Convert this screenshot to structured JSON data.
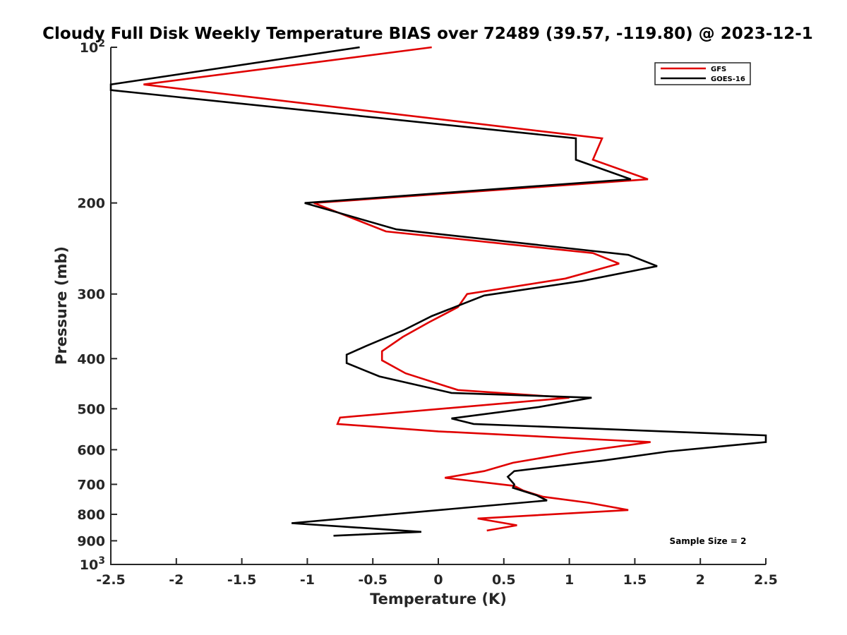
{
  "chart_data": {
    "type": "line",
    "title": "Cloudy Full Disk Weekly Temperature BIAS over 72489 (39.57, -119.80) @ 2023-12-1",
    "xlabel": "Temperature (K)",
    "ylabel": "Pressure (mb)",
    "xlim": [
      -2.5,
      2.5
    ],
    "ylim": [
      100,
      1000
    ],
    "y_scale": "log",
    "y_reversed": true,
    "grid": false,
    "legend_position": "top-right",
    "x_ticks": [
      -2.5,
      -2,
      -1.5,
      -1,
      -0.5,
      0,
      0.5,
      1,
      1.5,
      2,
      2.5
    ],
    "x_tick_labels": [
      "-2.5",
      "-2",
      "-1.5",
      "-1",
      "-0.5",
      "0",
      "0.5",
      "1",
      "1.5",
      "2",
      "2.5"
    ],
    "y_ticks": [
      100,
      200,
      300,
      400,
      500,
      600,
      700,
      800,
      900,
      1000
    ],
    "y_tick_labels": [
      {
        "base": "10",
        "exp": "2"
      },
      {
        "base": "200",
        "exp": ""
      },
      {
        "base": "300",
        "exp": ""
      },
      {
        "base": "400",
        "exp": ""
      },
      {
        "base": "500",
        "exp": ""
      },
      {
        "base": "600",
        "exp": ""
      },
      {
        "base": "700",
        "exp": ""
      },
      {
        "base": "800",
        "exp": ""
      },
      {
        "base": "900",
        "exp": ""
      },
      {
        "base": "10",
        "exp": "3"
      }
    ],
    "annotation": "Sample Size = 2",
    "series": [
      {
        "name": "GFS",
        "color": "#e00000",
        "points": [
          [
            -0.05,
            100
          ],
          [
            -2.25,
            118
          ],
          [
            1.25,
            150
          ],
          [
            1.18,
            165
          ],
          [
            1.6,
            180
          ],
          [
            -0.95,
            200
          ],
          [
            -0.4,
            227
          ],
          [
            1.18,
            250
          ],
          [
            1.38,
            262
          ],
          [
            0.97,
            280
          ],
          [
            0.22,
            300
          ],
          [
            0.15,
            318
          ],
          [
            -0.07,
            340
          ],
          [
            -0.27,
            363
          ],
          [
            -0.43,
            387
          ],
          [
            -0.43,
            403
          ],
          [
            -0.25,
            427
          ],
          [
            0.15,
            460
          ],
          [
            1.0,
            476
          ],
          [
            -0.75,
            520
          ],
          [
            -0.77,
            535
          ],
          [
            0.0,
            553
          ],
          [
            1.62,
            580
          ],
          [
            1.02,
            608
          ],
          [
            0.57,
            636
          ],
          [
            0.35,
            660
          ],
          [
            0.05,
            680
          ],
          [
            0.58,
            705
          ],
          [
            0.65,
            720
          ],
          [
            0.8,
            740
          ],
          [
            1.15,
            760
          ],
          [
            1.45,
            785
          ],
          [
            0.3,
            815
          ],
          [
            0.6,
            840
          ],
          [
            0.37,
            860
          ]
        ]
      },
      {
        "name": "GOES-16",
        "color": "#000000",
        "points": [
          [
            -0.6,
            100
          ],
          [
            -2.5,
            118
          ],
          [
            -2.5,
            121
          ],
          [
            1.05,
            150
          ],
          [
            1.05,
            165
          ],
          [
            1.47,
            180
          ],
          [
            -1.02,
            200
          ],
          [
            -0.32,
            225
          ],
          [
            1.45,
            252
          ],
          [
            1.67,
            265
          ],
          [
            1.1,
            283
          ],
          [
            0.35,
            302
          ],
          [
            -0.05,
            331
          ],
          [
            -0.27,
            353
          ],
          [
            -0.55,
            378
          ],
          [
            -0.7,
            393
          ],
          [
            -0.7,
            408
          ],
          [
            -0.45,
            433
          ],
          [
            0.1,
            466
          ],
          [
            1.17,
            476
          ],
          [
            0.77,
            496
          ],
          [
            0.1,
            522
          ],
          [
            0.27,
            535
          ],
          [
            2.5,
            563
          ],
          [
            2.5,
            580
          ],
          [
            1.75,
            605
          ],
          [
            1.25,
            630
          ],
          [
            0.58,
            660
          ],
          [
            0.53,
            677
          ],
          [
            0.58,
            700
          ],
          [
            0.57,
            711
          ],
          [
            0.75,
            735
          ],
          [
            0.83,
            752
          ],
          [
            -1.12,
            832
          ],
          [
            -0.13,
            865
          ],
          [
            -0.8,
            880
          ]
        ]
      }
    ]
  }
}
